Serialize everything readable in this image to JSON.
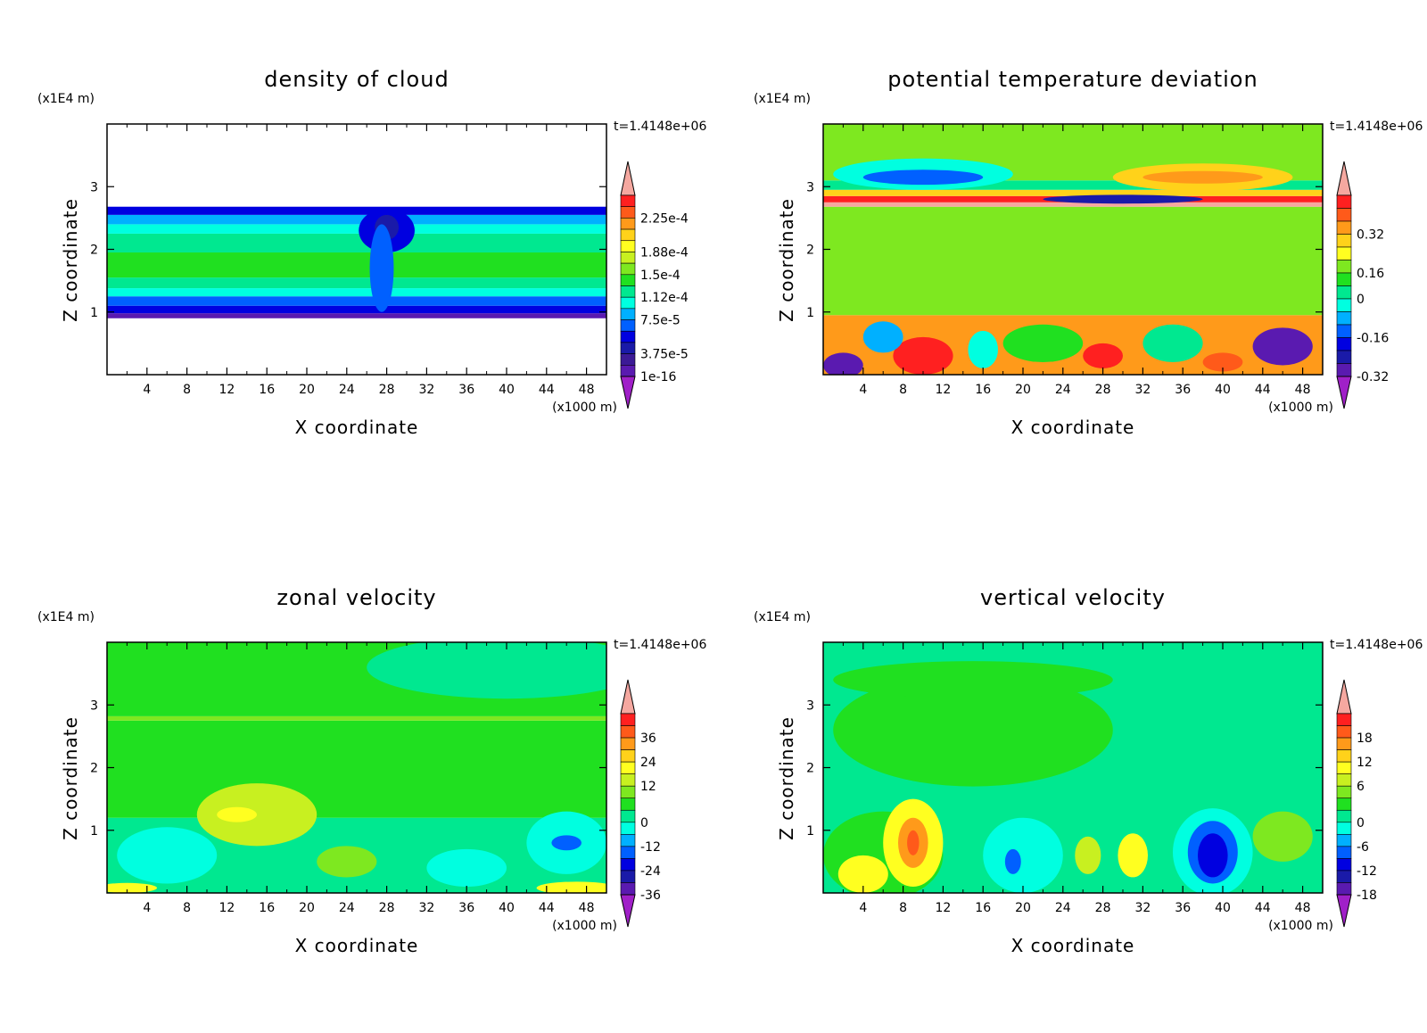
{
  "figure": {
    "timestamp": "t=1.4148e+06",
    "z_unit": "(x1E4 m)",
    "x_unit": "(x1000 m)",
    "xlabel": "X coordinate",
    "ylabel": "Z coordinate"
  },
  "chart_data": [
    {
      "type": "heatmap",
      "title": "density of cloud",
      "xlabel": "X coordinate",
      "ylabel": "Z coordinate",
      "x_ticks": [
        "4",
        "8",
        "12",
        "16",
        "20",
        "24",
        "28",
        "32",
        "36",
        "40",
        "44",
        "48"
      ],
      "y_ticks": [
        "1",
        "2",
        "3"
      ],
      "xlim": [
        0,
        50
      ],
      "ylim": [
        0,
        4
      ],
      "colorbar": {
        "labels": [
          "2.25e-4",
          "1.88e-4",
          "1.5e-4",
          "1.12e-4",
          "7.5e-5",
          "3.75e-5",
          "1e-16"
        ],
        "colors": [
          "#f5a8a0",
          "#ff2020",
          "#ff5a1a",
          "#ff9a1a",
          "#ffd21a",
          "#ffff20",
          "#c8f020",
          "#7ee820",
          "#20e020",
          "#00e890",
          "#00ffe0",
          "#00b0ff",
          "#0060ff",
          "#0000e0",
          "#1a1aa8",
          "#3c1a96",
          "#5a1ab0",
          "#a020c8"
        ]
      },
      "bands": [
        {
          "z0": 0.9,
          "z1": 0.98,
          "color": "#5a1ab0"
        },
        {
          "z0": 0.98,
          "z1": 1.1,
          "color": "#0000e0"
        },
        {
          "z0": 1.1,
          "z1": 1.25,
          "color": "#0060ff"
        },
        {
          "z0": 1.25,
          "z1": 1.38,
          "color": "#00ffe0"
        },
        {
          "z0": 1.38,
          "z1": 1.55,
          "color": "#00e890"
        },
        {
          "z0": 1.55,
          "z1": 1.95,
          "color": "#20e020"
        },
        {
          "z0": 1.95,
          "z1": 2.25,
          "color": "#00e890"
        },
        {
          "z0": 2.25,
          "z1": 2.4,
          "color": "#00ffe0"
        },
        {
          "z0": 2.4,
          "z1": 2.55,
          "color": "#00b0ff"
        },
        {
          "z0": 2.55,
          "z1": 2.68,
          "color": "#0000e0"
        }
      ],
      "blobs": [
        {
          "x": 28,
          "z": 2.3,
          "rx": 2.8,
          "rz": 0.35,
          "color": "#0000e0"
        },
        {
          "x": 28,
          "z": 2.35,
          "rx": 1.2,
          "rz": 0.2,
          "color": "#1a1aa8"
        },
        {
          "x": 27.5,
          "z": 1.7,
          "rx": 1.2,
          "rz": 0.7,
          "color": "#0060ff"
        }
      ]
    },
    {
      "type": "heatmap",
      "title": "potential temperature deviation",
      "xlabel": "X coordinate",
      "ylabel": "Z coordinate",
      "x_ticks": [
        "4",
        "8",
        "12",
        "16",
        "20",
        "24",
        "28",
        "32",
        "36",
        "40",
        "44",
        "48"
      ],
      "y_ticks": [
        "1",
        "2",
        "3"
      ],
      "xlim": [
        0,
        50
      ],
      "ylim": [
        0,
        4
      ],
      "colorbar": {
        "labels": [
          "0.32",
          "0.16",
          "0",
          "-0.16",
          "-0.32"
        ],
        "colors": [
          "#f5a8a0",
          "#ff2020",
          "#ff5a1a",
          "#ff9a1a",
          "#ffd21a",
          "#ffff20",
          "#7ee820",
          "#20e020",
          "#00e890",
          "#00ffe0",
          "#00b0ff",
          "#0060ff",
          "#0000e0",
          "#1a1aa8",
          "#5a1ab0",
          "#a020c8"
        ]
      },
      "bands": [
        {
          "z0": 0,
          "z1": 0.95,
          "color": "#ff9a1a"
        },
        {
          "z0": 0.95,
          "z1": 2.68,
          "color": "#7ee820"
        },
        {
          "z0": 2.68,
          "z1": 2.75,
          "color": "#f5a8a0"
        },
        {
          "z0": 2.75,
          "z1": 2.85,
          "color": "#ff2020"
        },
        {
          "z0": 2.85,
          "z1": 2.95,
          "color": "#ffd21a"
        },
        {
          "z0": 2.95,
          "z1": 3.1,
          "color": "#00e890"
        },
        {
          "z0": 3.1,
          "z1": 4,
          "color": "#7ee820"
        }
      ],
      "blobs": [
        {
          "x": 10,
          "z": 3.2,
          "rx": 9,
          "rz": 0.25,
          "color": "#00ffe0"
        },
        {
          "x": 10,
          "z": 3.15,
          "rx": 6,
          "rz": 0.12,
          "color": "#0060ff"
        },
        {
          "x": 38,
          "z": 3.15,
          "rx": 9,
          "rz": 0.22,
          "color": "#ffd21a"
        },
        {
          "x": 38,
          "z": 3.15,
          "rx": 6,
          "rz": 0.1,
          "color": "#ff9a1a"
        },
        {
          "x": 30,
          "z": 2.8,
          "rx": 8,
          "rz": 0.07,
          "color": "#1a1aa8"
        },
        {
          "x": 10,
          "z": 0.3,
          "rx": 3,
          "rz": 0.3,
          "color": "#ff2020"
        },
        {
          "x": 2,
          "z": 0.15,
          "rx": 2,
          "rz": 0.2,
          "color": "#5a1ab0"
        },
        {
          "x": 46,
          "z": 0.45,
          "rx": 3,
          "rz": 0.3,
          "color": "#5a1ab0"
        },
        {
          "x": 22,
          "z": 0.5,
          "rx": 4,
          "rz": 0.3,
          "color": "#20e020"
        },
        {
          "x": 35,
          "z": 0.5,
          "rx": 3,
          "rz": 0.3,
          "color": "#00e890"
        },
        {
          "x": 28,
          "z": 0.3,
          "rx": 2,
          "rz": 0.2,
          "color": "#ff2020"
        },
        {
          "x": 6,
          "z": 0.6,
          "rx": 2,
          "rz": 0.25,
          "color": "#00b0ff"
        },
        {
          "x": 16,
          "z": 0.4,
          "rx": 1.5,
          "rz": 0.3,
          "color": "#00ffe0"
        },
        {
          "x": 40,
          "z": 0.2,
          "rx": 2,
          "rz": 0.15,
          "color": "#ff5a1a"
        }
      ]
    },
    {
      "type": "heatmap",
      "title": "zonal velocity",
      "xlabel": "X coordinate",
      "ylabel": "Z coordinate",
      "x_ticks": [
        "4",
        "8",
        "12",
        "16",
        "20",
        "24",
        "28",
        "32",
        "36",
        "40",
        "44",
        "48"
      ],
      "y_ticks": [
        "1",
        "2",
        "3"
      ],
      "xlim": [
        0,
        50
      ],
      "ylim": [
        0,
        4
      ],
      "colorbar": {
        "labels": [
          "36",
          "24",
          "12",
          "0",
          "-12",
          "-24",
          "-36"
        ],
        "colors": [
          "#f5a8a0",
          "#ff2020",
          "#ff5a1a",
          "#ff9a1a",
          "#ffd21a",
          "#ffff20",
          "#c8f020",
          "#7ee820",
          "#20e020",
          "#00e890",
          "#00ffe0",
          "#00b0ff",
          "#0060ff",
          "#0000e0",
          "#1a1aa8",
          "#5a1ab0",
          "#a020c8"
        ]
      },
      "bands": [
        {
          "z0": 0,
          "z1": 1.2,
          "color": "#00e890"
        },
        {
          "z0": 1.2,
          "z1": 2.75,
          "color": "#20e020"
        },
        {
          "z0": 2.75,
          "z1": 2.82,
          "color": "#7ee820"
        },
        {
          "z0": 2.82,
          "z1": 4,
          "color": "#20e020"
        }
      ],
      "blobs": [
        {
          "x": 40,
          "z": 3.6,
          "rx": 14,
          "rz": 0.5,
          "color": "#00e890"
        },
        {
          "x": 15,
          "z": 1.25,
          "rx": 6,
          "rz": 0.5,
          "color": "#c8f020"
        },
        {
          "x": 13,
          "z": 1.25,
          "rx": 2,
          "rz": 0.12,
          "color": "#ffff20"
        },
        {
          "x": 46,
          "z": 0.8,
          "rx": 4,
          "rz": 0.5,
          "color": "#00ffe0"
        },
        {
          "x": 46,
          "z": 0.8,
          "rx": 1.5,
          "rz": 0.12,
          "color": "#0060ff"
        },
        {
          "x": 6,
          "z": 0.6,
          "rx": 5,
          "rz": 0.45,
          "color": "#00ffe0"
        },
        {
          "x": 2,
          "z": 0.08,
          "rx": 3,
          "rz": 0.08,
          "color": "#ffff20"
        },
        {
          "x": 47,
          "z": 0.08,
          "rx": 4,
          "rz": 0.1,
          "color": "#ffff20"
        },
        {
          "x": 36,
          "z": 0.4,
          "rx": 4,
          "rz": 0.3,
          "color": "#00ffe0"
        },
        {
          "x": 24,
          "z": 0.5,
          "rx": 3,
          "rz": 0.25,
          "color": "#7ee820"
        }
      ]
    },
    {
      "type": "heatmap",
      "title": "vertical velocity",
      "xlabel": "X coordinate",
      "ylabel": "Z coordinate",
      "x_ticks": [
        "4",
        "8",
        "12",
        "16",
        "20",
        "24",
        "28",
        "32",
        "36",
        "40",
        "44",
        "48"
      ],
      "y_ticks": [
        "1",
        "2",
        "3"
      ],
      "xlim": [
        0,
        50
      ],
      "ylim": [
        0,
        4
      ],
      "colorbar": {
        "labels": [
          "18",
          "12",
          "6",
          "0",
          "-6",
          "-12",
          "-18"
        ],
        "colors": [
          "#f5a8a0",
          "#ff2020",
          "#ff5a1a",
          "#ff9a1a",
          "#ffd21a",
          "#ffff20",
          "#c8f020",
          "#7ee820",
          "#20e020",
          "#00e890",
          "#00ffe0",
          "#00b0ff",
          "#0060ff",
          "#0000e0",
          "#1a1aa8",
          "#5a1ab0",
          "#a020c8"
        ]
      },
      "bands": [
        {
          "z0": 0,
          "z1": 4,
          "color": "#00e890"
        }
      ],
      "blobs": [
        {
          "x": 15,
          "z": 2.6,
          "rx": 14,
          "rz": 0.9,
          "color": "#20e020"
        },
        {
          "x": 15,
          "z": 3.4,
          "rx": 14,
          "rz": 0.3,
          "color": "#20e020"
        },
        {
          "x": 6,
          "z": 0.6,
          "rx": 6,
          "rz": 0.7,
          "color": "#20e020"
        },
        {
          "x": 9,
          "z": 0.8,
          "rx": 3,
          "rz": 0.7,
          "color": "#ffff20"
        },
        {
          "x": 9,
          "z": 0.8,
          "rx": 1.5,
          "rz": 0.4,
          "color": "#ff9a1a"
        },
        {
          "x": 9,
          "z": 0.8,
          "rx": 0.6,
          "rz": 0.2,
          "color": "#ff5a1a"
        },
        {
          "x": 4,
          "z": 0.3,
          "rx": 2.5,
          "rz": 0.3,
          "color": "#ffff20"
        },
        {
          "x": 20,
          "z": 0.6,
          "rx": 4,
          "rz": 0.6,
          "color": "#00ffe0"
        },
        {
          "x": 19,
          "z": 0.5,
          "rx": 0.8,
          "rz": 0.2,
          "color": "#0060ff"
        },
        {
          "x": 39,
          "z": 0.65,
          "rx": 4,
          "rz": 0.7,
          "color": "#00ffe0"
        },
        {
          "x": 39,
          "z": 0.65,
          "rx": 2.5,
          "rz": 0.5,
          "color": "#0060ff"
        },
        {
          "x": 39,
          "z": 0.6,
          "rx": 1.5,
          "rz": 0.35,
          "color": "#0000e0"
        },
        {
          "x": 46,
          "z": 0.9,
          "rx": 3,
          "rz": 0.4,
          "color": "#7ee820"
        },
        {
          "x": 31,
          "z": 0.6,
          "rx": 1.5,
          "rz": 0.35,
          "color": "#ffff20"
        },
        {
          "x": 26.5,
          "z": 0.6,
          "rx": 1.3,
          "rz": 0.3,
          "color": "#c8f020"
        }
      ]
    }
  ]
}
